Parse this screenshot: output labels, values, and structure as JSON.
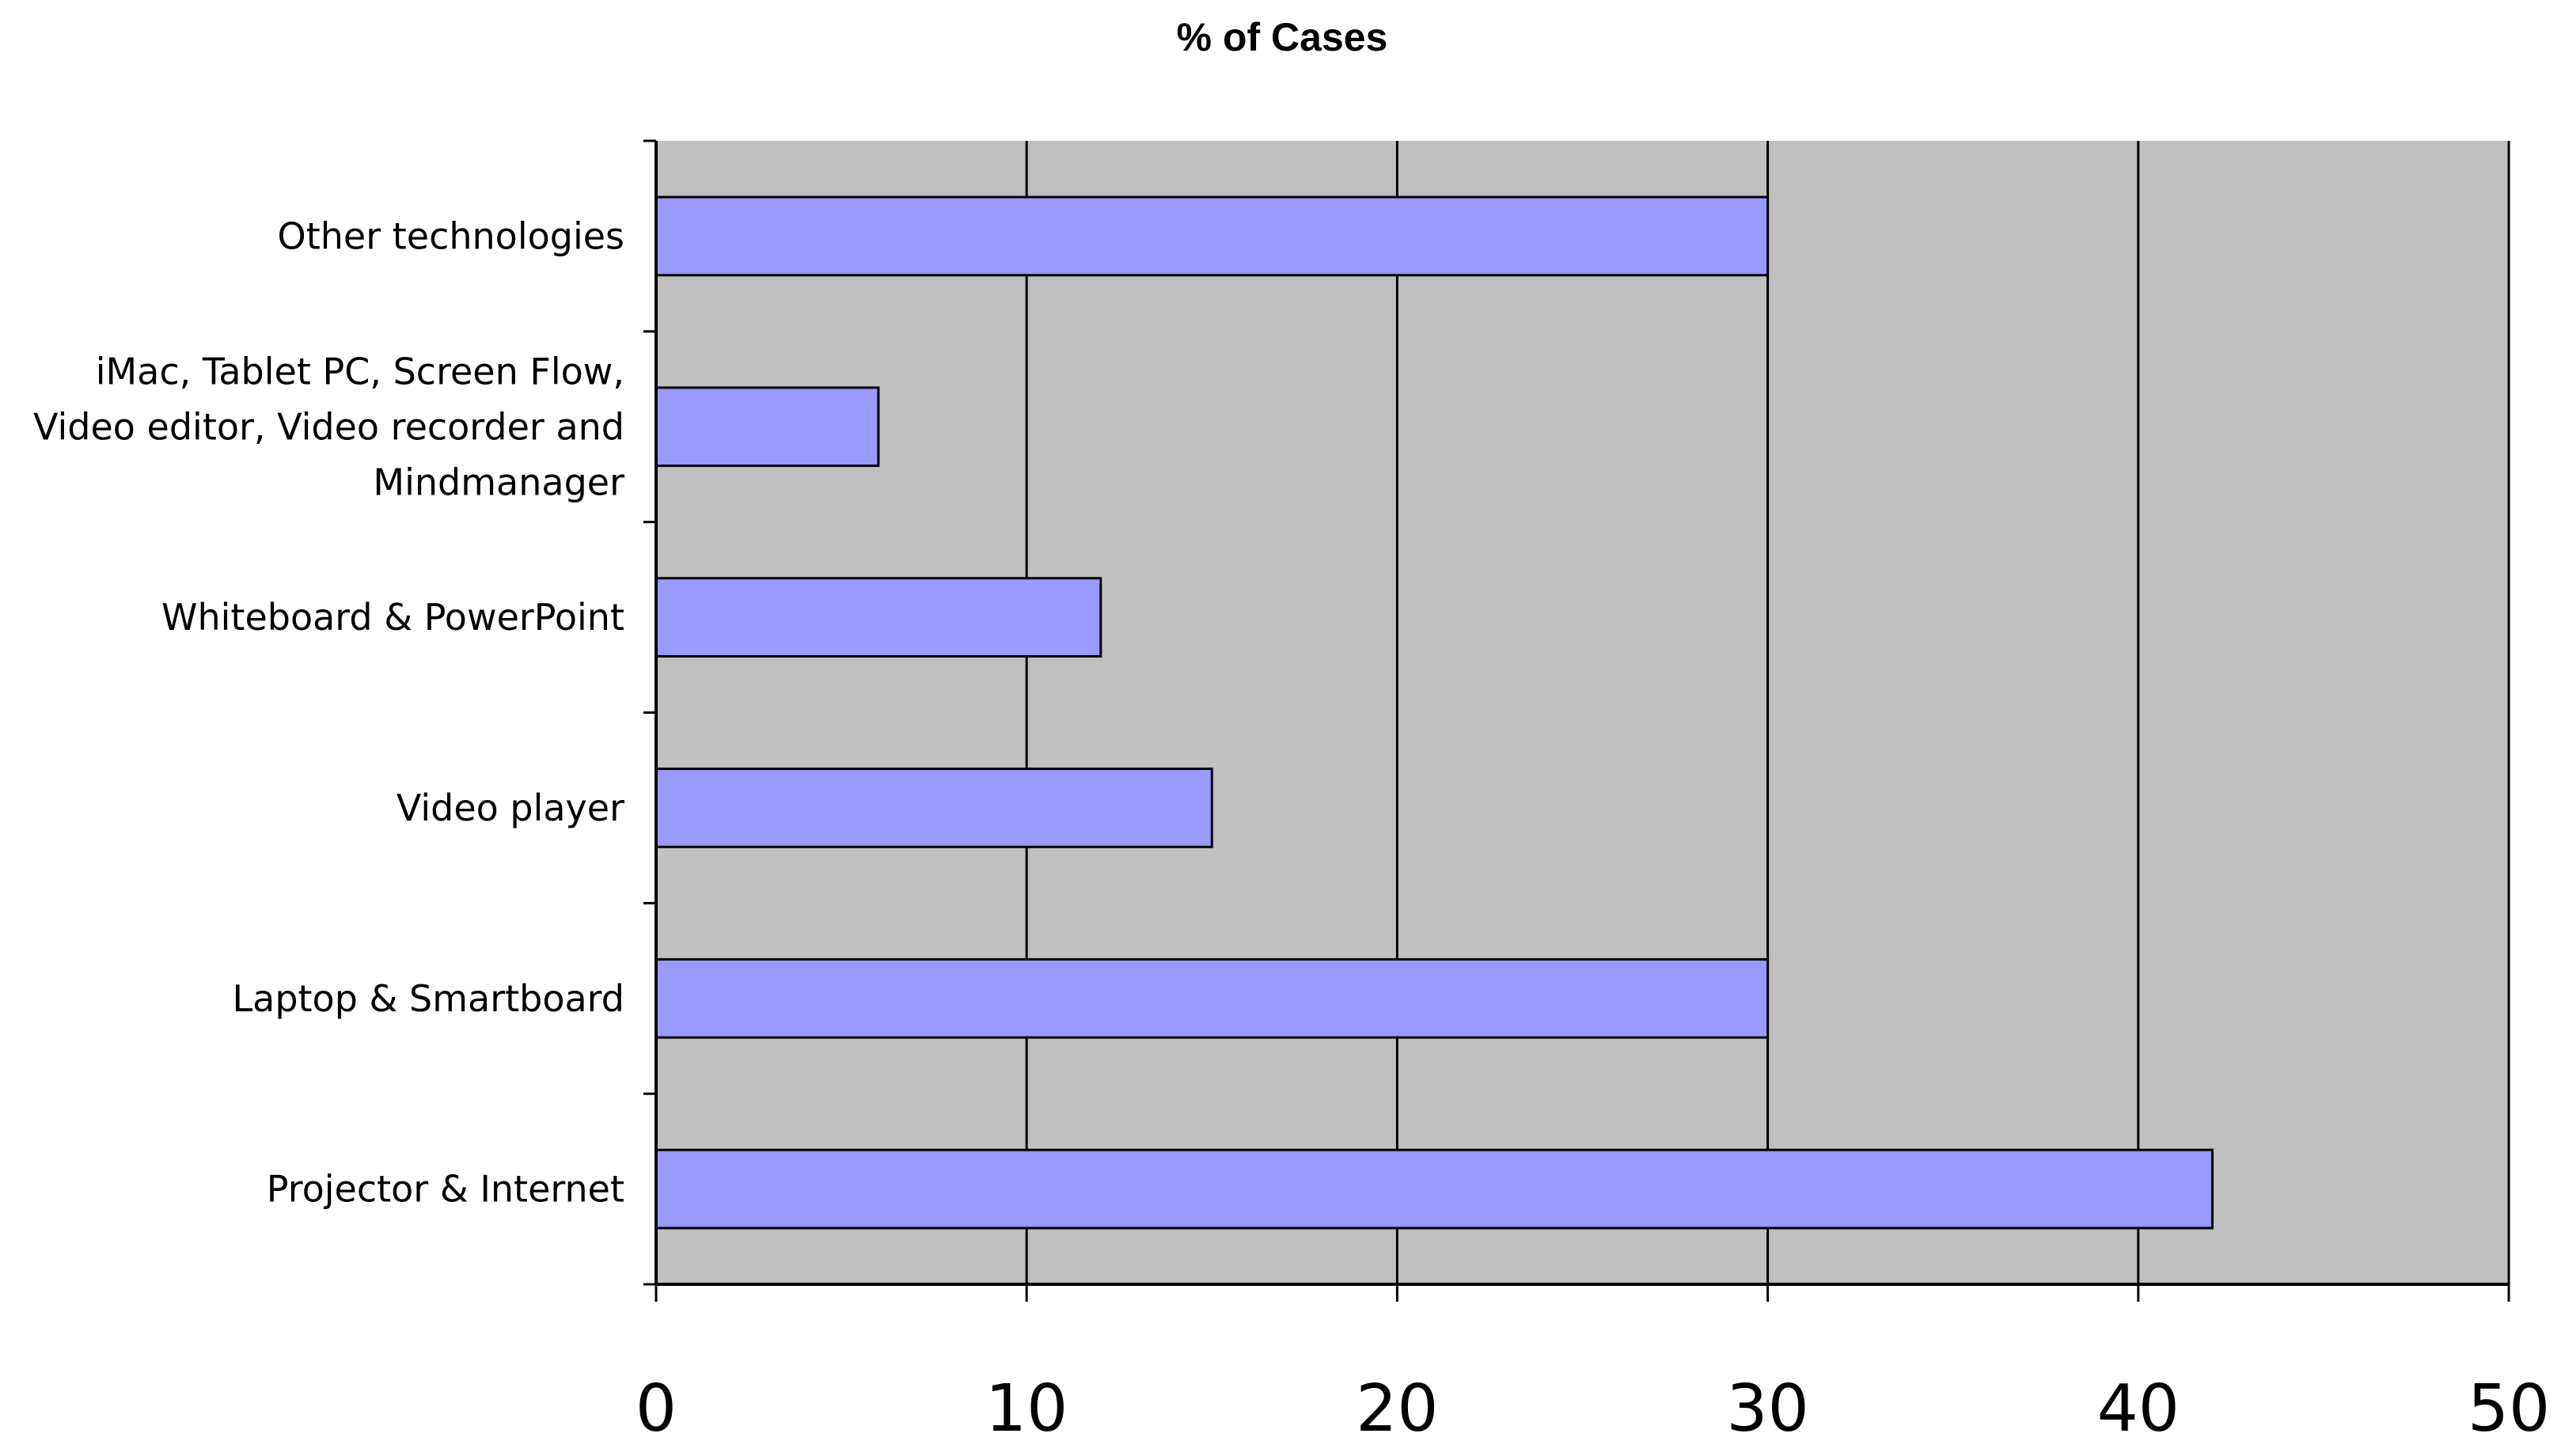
{
  "chart_data": {
    "type": "bar",
    "orientation": "horizontal",
    "title": "% of Cases",
    "xlabel": "",
    "ylabel": "",
    "categories": [
      "Projector & Internet",
      "Laptop & Smartboard",
      "Video player",
      "Whiteboard & PowerPoint",
      "iMac, Tablet PC, Screen Flow, Video editor, Video recorder and Mindmanager",
      "Other technologies"
    ],
    "category_lines": [
      [
        "Projector & Internet"
      ],
      [
        "Laptop & Smartboard"
      ],
      [
        "Video player"
      ],
      [
        "Whiteboard & PowerPoint"
      ],
      [
        "iMac, Tablet PC, Screen Flow,",
        "Video editor, Video recorder and",
        "Mindmanager"
      ],
      [
        "Other technologies"
      ]
    ],
    "values": [
      42,
      30,
      15,
      12,
      6,
      30
    ],
    "xlim": [
      0,
      50
    ],
    "xticks": [
      0,
      10,
      20,
      30,
      40,
      50
    ],
    "xtick_labels": [
      "0",
      "10",
      "20",
      "30",
      "40",
      "50"
    ],
    "grid": true,
    "legend": "none",
    "colors": {
      "bar_fill": "#9999ff",
      "bar_stroke": "#000000",
      "plot_background": "#c0c0c0",
      "gridline": "#000000"
    }
  }
}
